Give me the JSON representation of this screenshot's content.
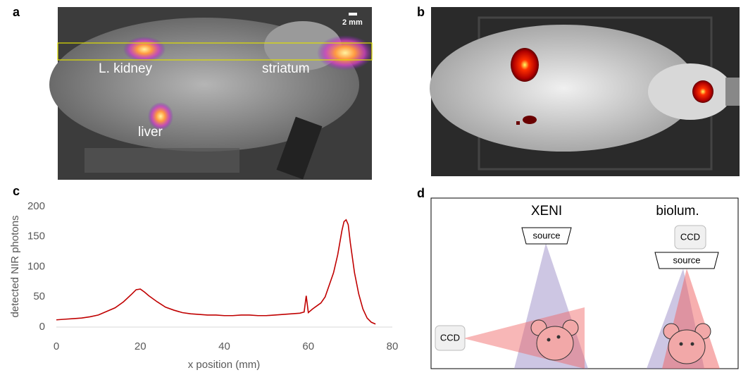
{
  "figure": {
    "panel_letters": [
      "a",
      "b",
      "c",
      "d"
    ],
    "panel_a": {
      "labels": [
        "L. kidney",
        "striatum",
        "liver"
      ],
      "scale_bar": "2 mm"
    },
    "panel_d": {
      "titles": [
        "XENI",
        "biolum."
      ],
      "xeni": {
        "source": "source",
        "detector": "CCD"
      },
      "biolum": {
        "detector": "CCD",
        "source": "source"
      }
    }
  },
  "chart_data": {
    "type": "line",
    "x_label": "x position (mm)",
    "y_label": "detected NIR photons",
    "x": [
      0,
      2,
      4,
      6,
      8,
      10,
      12,
      14,
      16,
      18,
      19,
      20,
      21,
      22,
      24,
      26,
      28,
      30,
      32,
      34,
      36,
      38,
      40,
      42,
      44,
      46,
      48,
      50,
      52,
      54,
      56,
      58,
      59,
      59.5,
      60,
      61,
      62,
      63,
      64,
      65,
      66,
      67,
      68,
      68.5,
      69,
      69.5,
      70,
      71,
      72,
      73,
      74,
      75,
      76
    ],
    "series": [
      {
        "color": "#c00000",
        "values": [
          12,
          13,
          14,
          15,
          17,
          20,
          26,
          32,
          42,
          55,
          62,
          63,
          58,
          52,
          42,
          33,
          28,
          24,
          22,
          21,
          20,
          20,
          19,
          19,
          20,
          20,
          19,
          19,
          20,
          21,
          22,
          23,
          25,
          52,
          24,
          30,
          35,
          40,
          50,
          70,
          90,
          120,
          160,
          175,
          178,
          170,
          140,
          90,
          55,
          30,
          15,
          8,
          5
        ]
      }
    ],
    "xlim": [
      0,
      80
    ],
    "ylim": [
      0,
      200
    ],
    "xticks": [
      0,
      20,
      40,
      60,
      80
    ],
    "yticks": [
      0,
      50,
      100,
      150,
      200
    ]
  }
}
